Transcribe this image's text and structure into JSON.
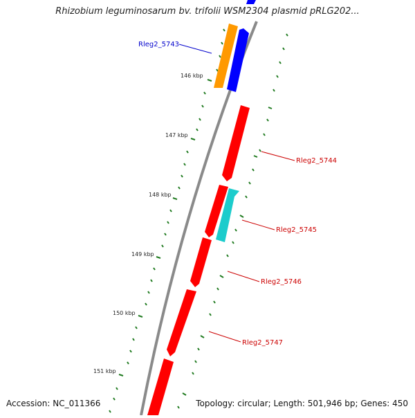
{
  "map": {
    "title": "Rhizobium leguminosarum bv. trifolii WSM2304 plasmid pRLG202...",
    "accession_text": "Accession: NC_011366",
    "summary_text": "Topology: circular; Length: 501,946 bp; Genes: 450",
    "colors": {
      "backbone": "#8a8a8a",
      "tick": "#1f7a1f",
      "red_gene": "#ff0000",
      "blue_gene": "#0000ff",
      "orange_gene": "#ff9900",
      "cyan_gene": "#1ccccc",
      "red_label": "#cc0000",
      "blue_label": "#0000cc"
    },
    "scale_labels": [
      "146 kbp",
      "147 kbp",
      "148 kbp",
      "149 kbp",
      "150 kbp",
      "151 kbp"
    ],
    "gene_labels": [
      {
        "text": "Rleg2_5743",
        "color": "blue"
      },
      {
        "text": "Rleg2_5744",
        "color": "red"
      },
      {
        "text": "Rleg2_5745",
        "color": "red"
      },
      {
        "text": "Rleg2_5746",
        "color": "red"
      },
      {
        "text": "Rleg2_5747",
        "color": "red"
      }
    ]
  }
}
